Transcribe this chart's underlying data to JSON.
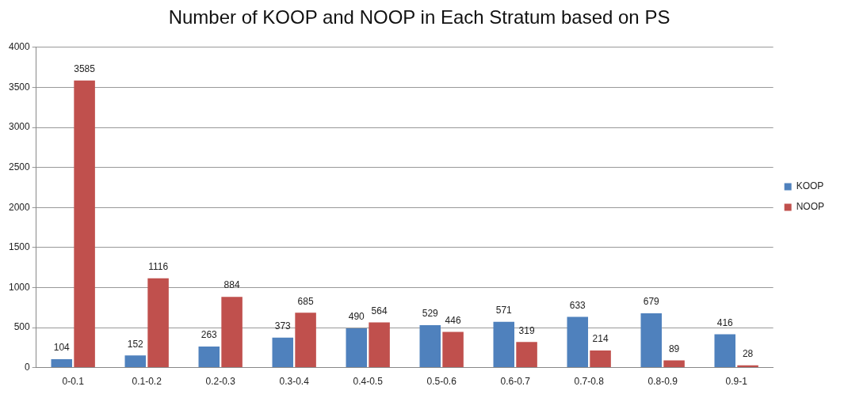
{
  "chart_data": {
    "type": "bar",
    "title": "Number of KOOP and NOOP in Each Stratum based on PS",
    "categories": [
      "0-0.1",
      "0.1-0.2",
      "0.2-0.3",
      "0.3-0.4",
      "0.4-0.5",
      "0.5-0.6",
      "0.6-0.7",
      "0.7-0.8",
      "0.8-0.9",
      "0.9-1"
    ],
    "series": [
      {
        "name": "KOOP",
        "color": "#4f81bd",
        "values": [
          104,
          152,
          263,
          373,
          490,
          529,
          571,
          633,
          679,
          416
        ]
      },
      {
        "name": "NOOP",
        "color": "#c0504d",
        "values": [
          3585,
          1116,
          884,
          685,
          564,
          446,
          319,
          214,
          89,
          28
        ]
      }
    ],
    "ylim": [
      0,
      4000
    ],
    "yticks": [
      0,
      500,
      1000,
      1500,
      2000,
      2500,
      3000,
      3500,
      4000
    ],
    "grid": "y",
    "legend": "right",
    "data_labels": true
  }
}
